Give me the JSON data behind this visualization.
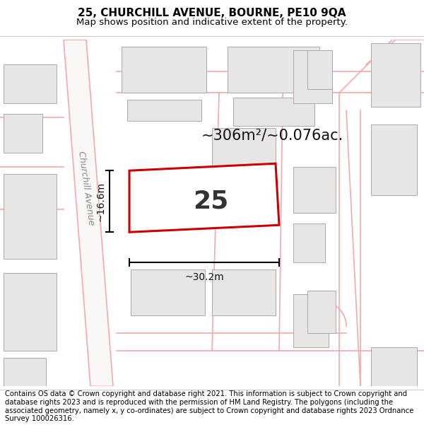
{
  "title_line1": "25, CHURCHILL AVENUE, BOURNE, PE10 9QA",
  "title_line2": "Map shows position and indicative extent of the property.",
  "footer_text": "Contains OS data © Crown copyright and database right 2021. This information is subject to Crown copyright and database rights 2023 and is reproduced with the permission of HM Land Registry. The polygons (including the associated geometry, namely x, y co-ordinates) are subject to Crown copyright and database rights 2023 Ordnance Survey 100026316.",
  "map_bg_color": "#ffffff",
  "road_line_color": "#f4aaaa",
  "building_fill": "#e8e6e4",
  "building_edge": "#aaaaaa",
  "highlight_color": "#cc0000",
  "area_text": "~306m²/~0.076ac.",
  "label_25": "25",
  "dim_width": "~30.2m",
  "dim_height": "~16.6m",
  "street_label": "Churchill Avenue",
  "title_fontsize": 11,
  "subtitle_fontsize": 9.5,
  "footer_fontsize": 7.2,
  "title_bold": true
}
